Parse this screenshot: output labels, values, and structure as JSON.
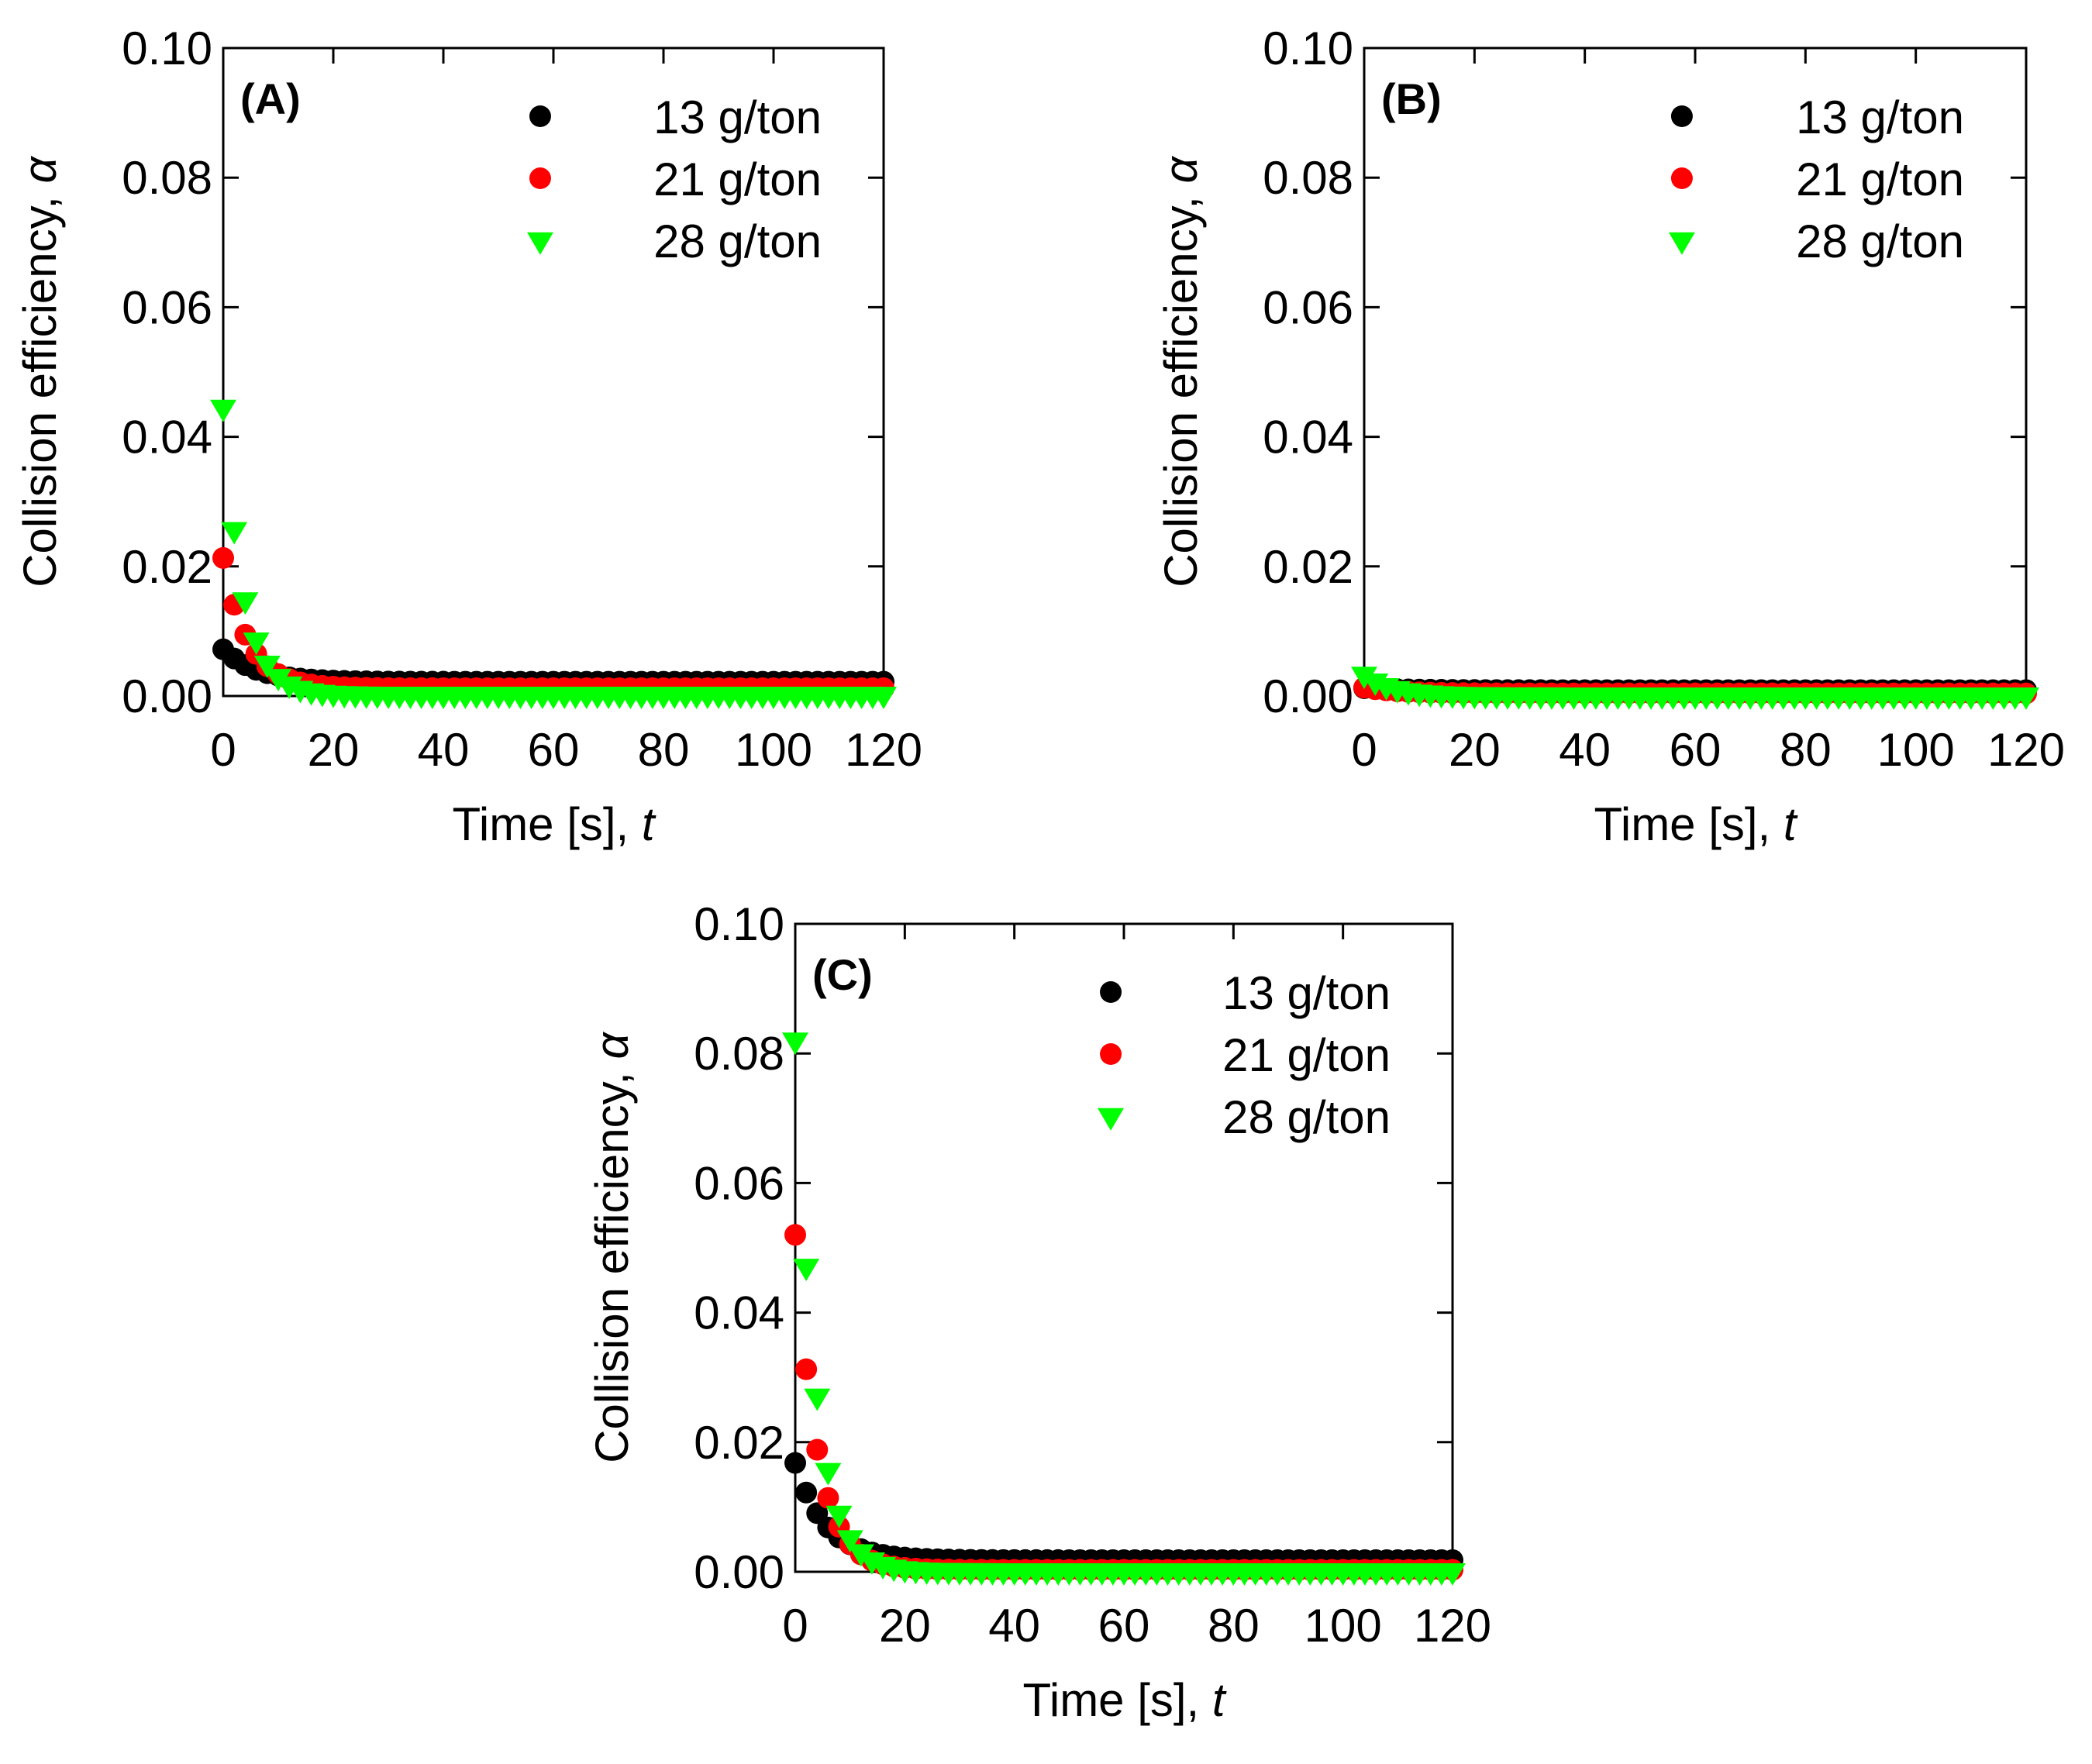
{
  "figure": {
    "y_axis_label": "Collision efficiency, ",
    "y_axis_symbol": "α",
    "x_axis_label": "Time [s], ",
    "x_axis_symbol": "t"
  },
  "series_styles": [
    {
      "name": "13 g/ton",
      "color": "#000000",
      "marker": "circle"
    },
    {
      "name": "21 g/ton",
      "color": "#ff0000",
      "marker": "circle"
    },
    {
      "name": "28 g/ton",
      "color": "#00ff00",
      "marker": "triangle-down"
    }
  ],
  "chart_data": [
    {
      "type": "scatter",
      "panel_label": "(A)",
      "xlabel": "Time [s], t",
      "ylabel": "Collision efficiency, α",
      "xlim": [
        0,
        120
      ],
      "ylim": [
        0,
        0.1
      ],
      "xticks": [
        "0",
        "20",
        "40",
        "60",
        "80",
        "100",
        "120"
      ],
      "yticks": [
        "0.00",
        "0.02",
        "0.04",
        "0.06",
        "0.08",
        "0.10"
      ],
      "legend_position": "top-right",
      "series": [
        {
          "name": "13 g/ton",
          "y0": 0.0072,
          "tau": 6.0,
          "yinf": 0.0022
        },
        {
          "name": "21 g/ton",
          "y0": 0.0213,
          "tau": 4.5,
          "yinf": 0.0012
        },
        {
          "name": "28 g/ton",
          "y0": 0.0445,
          "tau": 3.6,
          "yinf": 0.0002
        }
      ]
    },
    {
      "type": "scatter",
      "panel_label": "(B)",
      "xlabel": "Time [s], t",
      "ylabel": "Collision efficiency, α",
      "xlim": [
        0,
        120
      ],
      "ylim": [
        0,
        0.1
      ],
      "xticks": [
        "0",
        "20",
        "40",
        "60",
        "80",
        "100",
        "120"
      ],
      "yticks": [
        "0.00",
        "0.02",
        "0.04",
        "0.06",
        "0.08",
        "0.10"
      ],
      "legend_position": "top-right",
      "series": [
        {
          "name": "13 g/ton",
          "y0": 0.0012,
          "tau": 8.0,
          "yinf": 0.0009
        },
        {
          "name": "21 g/ton",
          "y0": 0.0013,
          "tau": 6.0,
          "yinf": 0.0004
        },
        {
          "name": "28 g/ton",
          "y0": 0.0033,
          "tau": 5.0,
          "yinf": 0.0001
        }
      ]
    },
    {
      "type": "scatter",
      "panel_label": "(C)",
      "xlabel": "Time [s], t",
      "ylabel": "Collision efficiency, α",
      "xlim": [
        0,
        120
      ],
      "ylim": [
        0,
        0.1
      ],
      "xticks": [
        "0",
        "20",
        "40",
        "60",
        "80",
        "100",
        "120"
      ],
      "yticks": [
        "0.00",
        "0.02",
        "0.04",
        "0.06",
        "0.08",
        "0.10"
      ],
      "legend_position": "top-right",
      "series": [
        {
          "name": "13 g/ton",
          "y0": 0.0168,
          "tau": 5.5,
          "yinf": 0.0018
        },
        {
          "name": "21 g/ton",
          "y0": 0.052,
          "tau": 3.9,
          "yinf": 0.0003
        },
        {
          "name": "28 g/ton",
          "y0": 0.082,
          "tau": 3.6,
          "yinf": 0.0001
        }
      ]
    }
  ]
}
